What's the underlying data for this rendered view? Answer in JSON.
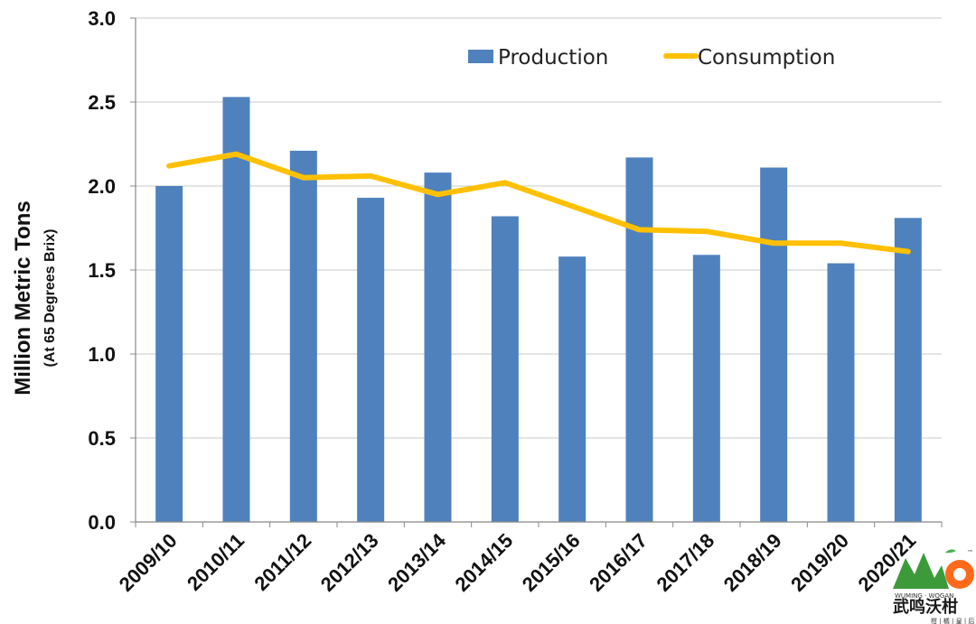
{
  "chart_data": {
    "type": "bar",
    "title": "",
    "ylabel": "Million Metric Tons",
    "ylabel_sub": "(At 65 Degrees Brix)",
    "xlabel": "",
    "ylim": [
      0,
      3.0
    ],
    "yticks": [
      "0.0",
      "0.5",
      "1.0",
      "1.5",
      "2.0",
      "2.5",
      "3.0"
    ],
    "categories": [
      "2009/10",
      "2010/11",
      "2011/12",
      "2012/13",
      "2013/14",
      "2014/15",
      "2015/16",
      "2016/17",
      "2017/18",
      "2018/19",
      "2019/20",
      "2020/21"
    ],
    "series": [
      {
        "name": "Production",
        "type": "bar",
        "color": "#4f81bd",
        "values": [
          2.0,
          2.53,
          2.21,
          1.93,
          2.08,
          1.82,
          1.58,
          2.17,
          1.59,
          2.11,
          1.54,
          1.81
        ]
      },
      {
        "name": "Consumption",
        "type": "line",
        "color": "#ffc000",
        "values": [
          2.12,
          2.19,
          2.05,
          2.06,
          1.95,
          2.02,
          1.88,
          1.74,
          1.73,
          1.66,
          1.66,
          1.61
        ]
      }
    ],
    "grid": "horizontal",
    "legend_position": "top-right"
  },
  "logo": {
    "text": "武鸣沃柑",
    "subtext": "柑 | 橘 | 皇 | 后",
    "tiny": "WUMING · WOGAN",
    "mark": "™"
  }
}
